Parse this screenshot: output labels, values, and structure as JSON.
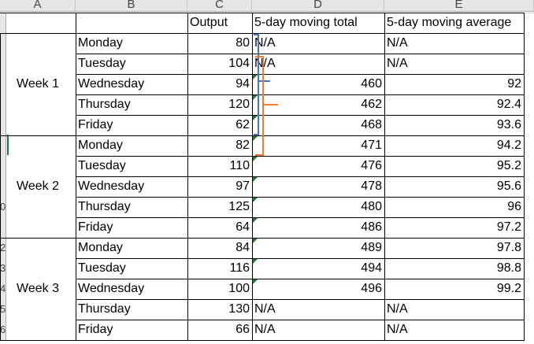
{
  "column_headers": [
    "A",
    "B",
    "C",
    "D",
    "E"
  ],
  "row_headers": [
    "",
    "",
    "",
    "",
    "",
    "",
    "",
    "",
    "0",
    "",
    "2",
    "3",
    "4",
    "5",
    "6"
  ],
  "header_row": {
    "output": "Output",
    "moving_total": "5-day moving total",
    "moving_average": "5-day moving average"
  },
  "weeks": [
    "Week 1",
    "Week 2",
    "Week 3"
  ],
  "rows": [
    {
      "day": "Monday",
      "output": "80",
      "total": "N/A",
      "average": "N/A"
    },
    {
      "day": "Tuesday",
      "output": "104",
      "total": "N/A",
      "average": "N/A"
    },
    {
      "day": "Wednesday",
      "output": "94",
      "total": "460",
      "average": "92"
    },
    {
      "day": "Thursday",
      "output": "120",
      "total": "462",
      "average": "92.4"
    },
    {
      "day": "Friday",
      "output": "62",
      "total": "468",
      "average": "93.6"
    },
    {
      "day": "Monday",
      "output": "82",
      "total": "471",
      "average": "94.2"
    },
    {
      "day": "Tuesday",
      "output": "110",
      "total": "476",
      "average": "95.2"
    },
    {
      "day": "Wednesday",
      "output": "97",
      "total": "478",
      "average": "95.6"
    },
    {
      "day": "Thursday",
      "output": "125",
      "total": "480",
      "average": "96"
    },
    {
      "day": "Friday",
      "output": "64",
      "total": "486",
      "average": "97.2"
    },
    {
      "day": "Monday",
      "output": "84",
      "total": "489",
      "average": "97.8"
    },
    {
      "day": "Tuesday",
      "output": "116",
      "total": "494",
      "average": "98.8"
    },
    {
      "day": "Wednesday",
      "output": "100",
      "total": "496",
      "average": "99.2"
    },
    {
      "day": "Thursday",
      "output": "130",
      "total": "N/A",
      "average": "N/A"
    },
    {
      "day": "Friday",
      "output": "66",
      "total": "N/A",
      "average": "N/A"
    }
  ],
  "colors": {
    "window_bracket": "#4472c4",
    "window_bracket_2": "#ed7d31",
    "error_indicator": "#1e7b34"
  }
}
